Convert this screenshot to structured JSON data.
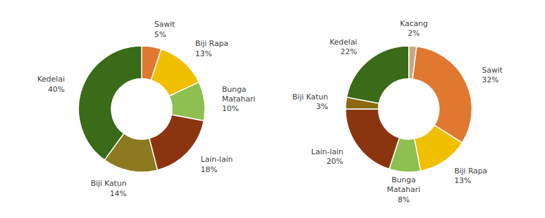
{
  "chart_data": [
    {
      "type": "donut",
      "categories": [
        "Sawit",
        "Biji Rapa",
        "Bunga\nMatahari",
        "Lain-lain",
        "Biji Katun",
        "Kedelai"
      ],
      "values": [
        5,
        13,
        10,
        18,
        14,
        40
      ],
      "value_labels": [
        "5%",
        "13%",
        "10%",
        "18%",
        "14%",
        "40%"
      ],
      "colors": [
        "#E07830",
        "#F0BF00",
        "#8DC050",
        "#8B3510",
        "#8B7A20",
        "#3A6B18"
      ],
      "data_labels": true
    },
    {
      "type": "donut",
      "categories": [
        "Kacang",
        "Sawit",
        "Biji Rapa",
        "Bunga\nMatahari",
        "Lain-lain",
        "Biji Katun",
        "Kedelai"
      ],
      "values": [
        2,
        32,
        13,
        8,
        20,
        3,
        22
      ],
      "value_labels": [
        "2%",
        "32%",
        "13%",
        "8%",
        "20%",
        "3%",
        "22%"
      ],
      "colors": [
        "#C8A882",
        "#E07830",
        "#F0BF00",
        "#8DC050",
        "#8B3510",
        "#8B6A10",
        "#3A6B18"
      ],
      "data_labels": true
    }
  ]
}
